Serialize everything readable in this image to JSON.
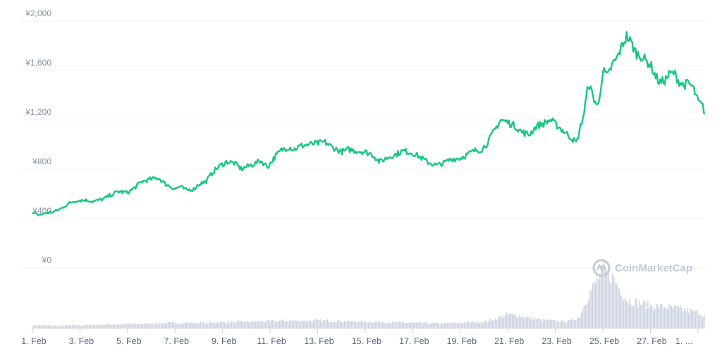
{
  "chart_data": {
    "type": "line",
    "currency_symbol": "¥",
    "yticks": [
      "¥0",
      "¥400",
      "¥800",
      "¥1,200",
      "¥1,600",
      "¥2,000"
    ],
    "ylim": [
      0,
      2000
    ],
    "xticks": [
      "1. Feb",
      "3. Feb",
      "5. Feb",
      "7. Feb",
      "9. Feb",
      "11. Feb",
      "13. Feb",
      "15. Feb",
      "17. Feb",
      "19. Feb",
      "21. Feb",
      "23. Feb",
      "25. Feb",
      "27. Feb",
      "1. ..."
    ],
    "xlim": [
      0,
      28.3
    ],
    "grid": true,
    "line_color": "#16c784",
    "volume_color": "#cfd5e2",
    "series": [
      {
        "values_x": [
          0.0,
          0.3,
          0.6,
          0.9,
          1.2,
          1.5,
          1.8,
          2.2,
          2.6,
          3.0,
          3.3,
          3.6,
          4.0,
          4.3,
          4.6,
          5.0,
          5.3,
          5.6,
          6.0,
          6.2,
          6.5,
          6.8,
          7.0,
          7.3,
          7.6,
          7.9,
          8.2,
          8.5,
          8.8,
          9.0,
          9.3,
          9.6,
          9.9,
          10.2,
          10.5,
          10.8,
          11.0,
          11.3,
          11.6,
          12.0,
          12.3,
          12.6,
          13.0,
          13.3,
          13.6,
          14.0,
          14.3,
          14.6,
          15.0,
          15.3,
          15.6,
          16.0,
          16.3,
          16.6,
          17.0,
          17.3,
          17.6,
          18.0,
          18.3,
          18.6,
          18.9,
          19.1,
          19.4,
          19.7,
          20.0,
          20.3,
          20.6,
          20.9,
          21.2,
          21.5,
          21.8,
          22.1,
          22.4,
          22.7,
          22.9,
          23.0,
          23.2,
          23.4,
          23.6,
          23.8,
          24.0,
          24.2,
          24.4,
          24.6,
          24.8,
          25.0,
          25.2,
          25.4,
          25.6,
          25.8,
          26.0,
          26.2,
          26.4,
          26.6,
          26.8,
          27.0,
          27.2,
          27.4,
          27.6,
          27.8,
          28.0,
          28.2,
          28.3
        ],
        "values_y": [
          440,
          430,
          445,
          455,
          480,
          520,
          545,
          550,
          540,
          560,
          590,
          620,
          610,
          650,
          700,
          720,
          730,
          680,
          640,
          660,
          630,
          640,
          680,
          700,
          780,
          830,
          860,
          850,
          800,
          820,
          840,
          870,
          820,
          900,
          960,
          980,
          960,
          990,
          1000,
          1010,
          1020,
          980,
          940,
          960,
          950,
          940,
          920,
          860,
          900,
          920,
          950,
          930,
          900,
          860,
          830,
          850,
          880,
          890,
          920,
          950,
          960,
          1000,
          1100,
          1200,
          1180,
          1150,
          1100,
          1080,
          1150,
          1170,
          1200,
          1150,
          1100,
          1050,
          1010,
          1100,
          1250,
          1500,
          1380,
          1300,
          1600,
          1550,
          1650,
          1700,
          1800,
          1880,
          1820,
          1740,
          1720,
          1680,
          1650,
          1560,
          1500,
          1520,
          1570,
          1580,
          1510,
          1480,
          1500,
          1460,
          1350,
          1310,
          1250
        ]
      }
    ],
    "volume": {
      "values_x": [
        0.0,
        1.0,
        2.0,
        3.0,
        4.0,
        5.0,
        6.0,
        7.0,
        8.0,
        9.0,
        10.0,
        11.0,
        12.0,
        13.0,
        14.0,
        15.0,
        16.0,
        17.0,
        18.0,
        19.0,
        19.5,
        20.0,
        20.5,
        21.0,
        21.5,
        22.0,
        22.5,
        23.0,
        23.2,
        23.4,
        23.6,
        23.8,
        24.0,
        24.2,
        24.4,
        24.6,
        24.8,
        25.0,
        25.5,
        26.0,
        26.5,
        27.0,
        27.5,
        28.0,
        28.3
      ],
      "values_y": [
        0.06,
        0.05,
        0.06,
        0.07,
        0.08,
        0.09,
        0.1,
        0.1,
        0.11,
        0.12,
        0.13,
        0.14,
        0.14,
        0.13,
        0.12,
        0.11,
        0.1,
        0.09,
        0.1,
        0.12,
        0.18,
        0.25,
        0.22,
        0.18,
        0.15,
        0.13,
        0.12,
        0.2,
        0.45,
        0.6,
        0.75,
        0.9,
        1.0,
        0.95,
        0.88,
        0.75,
        0.62,
        0.5,
        0.45,
        0.4,
        0.38,
        0.36,
        0.32,
        0.28,
        0.22
      ]
    }
  },
  "watermark": {
    "text": "CoinMarketCap",
    "icon": "coinmarketcap-logo-icon"
  }
}
